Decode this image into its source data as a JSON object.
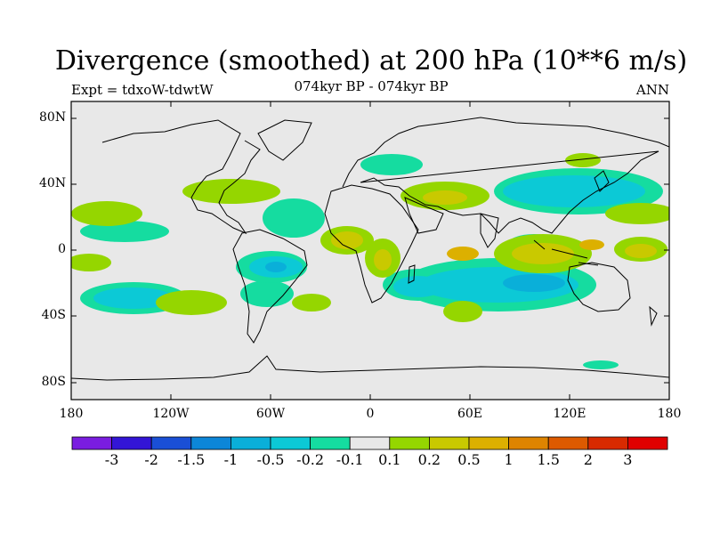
{
  "title": "Divergence (smoothed) at 200 hPa (10**6 m/s)",
  "subtitle": "074kyr BP - 074kyr BP",
  "left_label": "Expt = tdxoW-tdwtW",
  "right_label": "ANN",
  "y_ticks": [
    "80N",
    "40N",
    "0",
    "40S",
    "80S"
  ],
  "x_ticks": [
    "180",
    "120W",
    "60W",
    "0",
    "60E",
    "120E",
    "180"
  ],
  "colorbar": {
    "labels": [
      "-3",
      "-2",
      "-1.5",
      "-1",
      "-0.5",
      "-0.2",
      "-0.1",
      "0.1",
      "0.2",
      "0.5",
      "1",
      "1.5",
      "2",
      "3"
    ],
    "colors": [
      "#7a1de0",
      "#3315d6",
      "#1a4fd6",
      "#0c86d8",
      "#0aafd9",
      "#0cc9d6",
      "#15dca0",
      "#e8e8e8",
      "#95d600",
      "#c9c900",
      "#dcb000",
      "#de8400",
      "#dd5a00",
      "#d82a00",
      "#e00000"
    ]
  },
  "map_colors": {
    "background": "#e8e8e8",
    "negative_light": "#15dca0",
    "negative_mid": "#0cc9d6",
    "negative_strong": "#0aafd9",
    "positive_light": "#95d600",
    "positive_mid": "#c9c900",
    "positive_strong": "#dcb000"
  }
}
